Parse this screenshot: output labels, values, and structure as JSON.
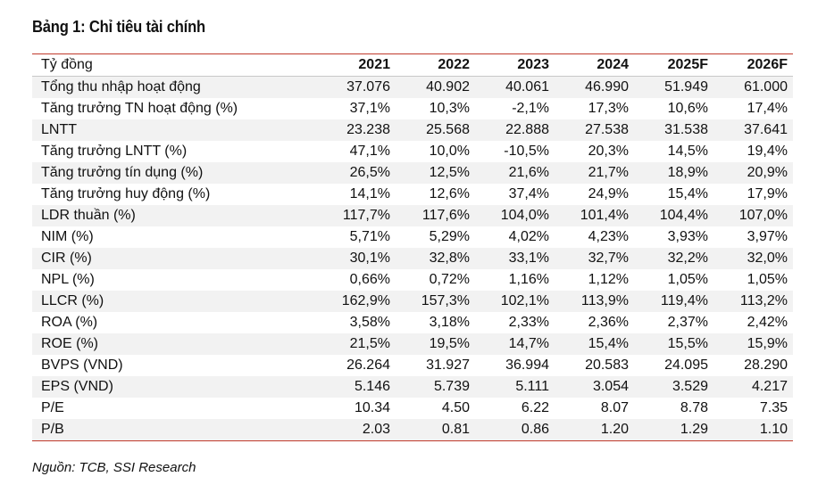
{
  "title": "Bảng 1: Chỉ tiêu tài chính",
  "table": {
    "unit_label": "Tỷ đồng",
    "columns": [
      "2021",
      "2022",
      "2023",
      "2024",
      "2025F",
      "2026F"
    ],
    "rows": [
      {
        "label": "Tổng thu nhập hoạt động",
        "values": [
          "37.076",
          "40.902",
          "40.061",
          "46.990",
          "51.949",
          "61.000"
        ]
      },
      {
        "label": "Tăng trưởng TN hoạt động (%)",
        "values": [
          "37,1%",
          "10,3%",
          "-2,1%",
          "17,3%",
          "10,6%",
          "17,4%"
        ]
      },
      {
        "label": "LNTT",
        "values": [
          "23.238",
          "25.568",
          "22.888",
          "27.538",
          "31.538",
          "37.641"
        ]
      },
      {
        "label": "Tăng trưởng LNTT (%)",
        "values": [
          "47,1%",
          "10,0%",
          "-10,5%",
          "20,3%",
          "14,5%",
          "19,4%"
        ]
      },
      {
        "label": "Tăng trưởng tín dụng (%)",
        "values": [
          "26,5%",
          "12,5%",
          "21,6%",
          "21,7%",
          "18,9%",
          "20,9%"
        ]
      },
      {
        "label": "Tăng trưởng huy động (%)",
        "values": [
          "14,1%",
          "12,6%",
          "37,4%",
          "24,9%",
          "15,4%",
          "17,9%"
        ]
      },
      {
        "label": "LDR thuần (%)",
        "values": [
          "117,7%",
          "117,6%",
          "104,0%",
          "101,4%",
          "104,4%",
          "107,0%"
        ]
      },
      {
        "label": "NIM (%)",
        "values": [
          "5,71%",
          "5,29%",
          "4,02%",
          "4,23%",
          "3,93%",
          "3,97%"
        ]
      },
      {
        "label": "CIR (%)",
        "values": [
          "30,1%",
          "32,8%",
          "33,1%",
          "32,7%",
          "32,2%",
          "32,0%"
        ]
      },
      {
        "label": "NPL (%)",
        "values": [
          "0,66%",
          "0,72%",
          "1,16%",
          "1,12%",
          "1,05%",
          "1,05%"
        ]
      },
      {
        "label": "LLCR (%)",
        "values": [
          "162,9%",
          "157,3%",
          "102,1%",
          "113,9%",
          "119,4%",
          "113,2%"
        ]
      },
      {
        "label": "ROA (%)",
        "values": [
          "3,58%",
          "3,18%",
          "2,33%",
          "2,36%",
          "2,37%",
          "2,42%"
        ]
      },
      {
        "label": "ROE (%)",
        "values": [
          "21,5%",
          "19,5%",
          "14,7%",
          "15,4%",
          "15,5%",
          "15,9%"
        ]
      },
      {
        "label": "BVPS (VND)",
        "values": [
          "26.264",
          "31.927",
          "36.994",
          "20.583",
          "24.095",
          "28.290"
        ]
      },
      {
        "label": "EPS (VND)",
        "values": [
          "5.146",
          "5.739",
          "5.111",
          "3.054",
          "3.529",
          "4.217"
        ]
      },
      {
        "label": "P/E",
        "values": [
          "10.34",
          "4.50",
          "6.22",
          "8.07",
          "8.78",
          "7.35"
        ]
      },
      {
        "label": "P/B",
        "values": [
          "2.03",
          "0.81",
          "0.86",
          "1.20",
          "1.29",
          "1.10"
        ]
      }
    ]
  },
  "source": "Nguồn: TCB, SSI Research",
  "colors": {
    "rule": "#c0392b",
    "stripe": "#f2f2f2"
  }
}
